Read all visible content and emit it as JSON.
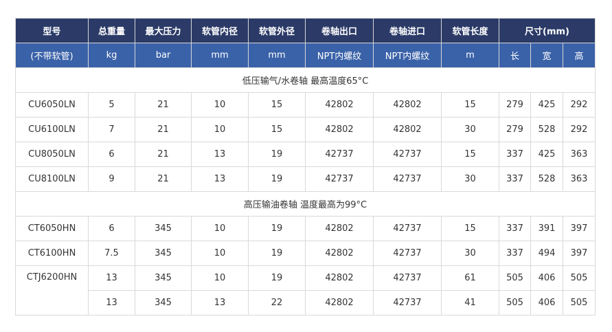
{
  "header": {
    "row1": [
      "型号",
      "总重量",
      "最大压力",
      "软管内径",
      "软管外径",
      "卷轴出口",
      "卷轴进口",
      "软管长度",
      "尺寸(mm)"
    ],
    "row2": [
      "(不带软管)",
      "kg",
      "bar",
      "mm",
      "mm",
      "NPT内螺纹",
      "NPT内螺纹",
      "m",
      "长",
      "宽",
      "高"
    ]
  },
  "sections": [
    {
      "title": "低压输气/水卷轴 最高温度65°C",
      "rows": [
        [
          "CU6050LN",
          "5",
          "21",
          "10",
          "15",
          "42802",
          "42802",
          "15",
          "279",
          "425",
          "292"
        ],
        [
          "CU6100LN",
          "7",
          "21",
          "10",
          "15",
          "42802",
          "42802",
          "30",
          "279",
          "528",
          "292"
        ],
        [
          "CU8050LN",
          "6",
          "21",
          "13",
          "19",
          "42737",
          "42737",
          "15",
          "337",
          "425",
          "363"
        ],
        [
          "CU8100LN",
          "9",
          "21",
          "13",
          "19",
          "42737",
          "42737",
          "30",
          "337",
          "528",
          "363"
        ]
      ]
    },
    {
      "title": "高压输油卷轴 温度最高为99°C",
      "rows": [
        [
          "CT6050HN",
          "6",
          "345",
          "10",
          "19",
          "42802",
          "42737",
          "15",
          "337",
          "391",
          "397"
        ],
        [
          "CT6100HN",
          "7.5",
          "345",
          "10",
          "19",
          "42802",
          "42737",
          "30",
          "337",
          "494",
          "397"
        ],
        [
          "CTJ6200HN",
          "13",
          "345",
          "10",
          "19",
          "42802",
          "42737",
          "61",
          "505",
          "406",
          "505"
        ],
        [
          "",
          "13",
          "345",
          "13",
          "22",
          "42802",
          "42737",
          "41",
          "505",
          "406",
          "505"
        ]
      ]
    }
  ]
}
